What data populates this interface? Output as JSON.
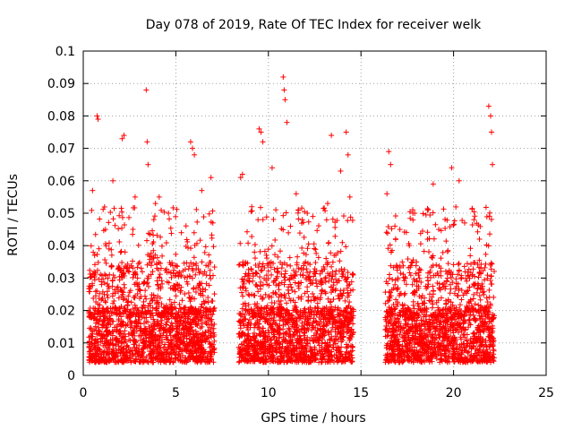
{
  "chart_data": {
    "type": "scatter",
    "title": "Day 078 of 2019, Rate Of TEC Index for receiver welk",
    "xlabel": "GPS time / hours",
    "ylabel": "ROTI / TECUs",
    "xlim": [
      0,
      25
    ],
    "ylim": [
      0,
      0.1
    ],
    "x_ticks": [
      0,
      5,
      10,
      15,
      20,
      25
    ],
    "x_tick_labels": [
      "0",
      "5",
      "10",
      "15",
      "20",
      "25"
    ],
    "y_ticks": [
      0,
      0.01,
      0.02,
      0.03,
      0.04,
      0.05,
      0.06,
      0.07,
      0.08,
      0.09,
      0.1
    ],
    "y_tick_labels": [
      "0",
      "0.01",
      "0.02",
      "0.03",
      "0.04",
      "0.05",
      "0.06",
      "0.07",
      "0.08",
      "0.09",
      "0.1"
    ],
    "grid": true,
    "marker": "+",
    "color": "#ff0000",
    "data_segments_hours": [
      [
        0.3,
        7.1
      ],
      [
        8.4,
        14.6
      ],
      [
        16.3,
        22.2
      ]
    ],
    "series": [
      {
        "name": "ROTI",
        "x": [
          0.75,
          0.8,
          2.1,
          2.2,
          3.4,
          3.45,
          3.5,
          5.8,
          5.9,
          6.0,
          9.5,
          9.6,
          9.7,
          10.8,
          10.85,
          10.9,
          11.0,
          13.4,
          14.2,
          14.3,
          16.5,
          16.6,
          19.9,
          20.3,
          21.9,
          22.0,
          22.05,
          1.2,
          4.1,
          7.0,
          8.5,
          12.1,
          17.8,
          18.9,
          21.1,
          0.5,
          1.6,
          2.8,
          3.9,
          4.6,
          5.3,
          6.4,
          6.9,
          8.6,
          9.1,
          10.2,
          11.5,
          12.4,
          13.2,
          13.9,
          14.4,
          16.4,
          17.1,
          17.9,
          18.6,
          19.2,
          20.6,
          21.4,
          22.1
        ],
        "y": [
          0.08,
          0.079,
          0.073,
          0.074,
          0.088,
          0.072,
          0.065,
          0.072,
          0.07,
          0.068,
          0.076,
          0.075,
          0.072,
          0.092,
          0.088,
          0.085,
          0.078,
          0.074,
          0.075,
          0.068,
          0.069,
          0.065,
          0.064,
          0.06,
          0.083,
          0.08,
          0.075,
          0.045,
          0.055,
          0.047,
          0.061,
          0.05,
          0.05,
          0.059,
          0.048,
          0.057,
          0.06,
          0.055,
          0.053,
          0.05,
          0.044,
          0.057,
          0.061,
          0.062,
          0.052,
          0.064,
          0.056,
          0.049,
          0.053,
          0.063,
          0.055,
          0.056,
          0.045,
          0.05,
          0.051,
          0.045,
          0.047,
          0.042,
          0.065
        ]
      }
    ]
  }
}
